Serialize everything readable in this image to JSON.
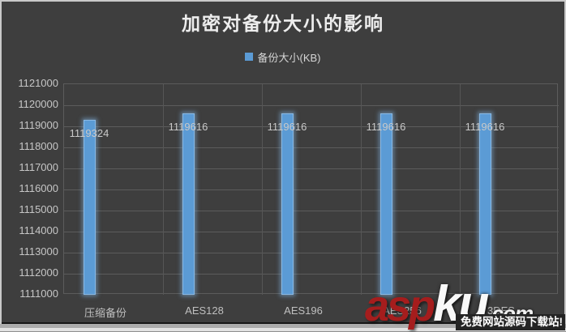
{
  "chart_data": {
    "type": "bar",
    "title": "加密对备份大小的影响",
    "legend": {
      "label": "备份大小(KB)",
      "position": "top"
    },
    "categories": [
      "压缩备份",
      "AES128",
      "AES196",
      "AES256",
      "3DES"
    ],
    "series": [
      {
        "name": "备份大小(KB)",
        "values": [
          1119324,
          1119616,
          1119616,
          1119616,
          1119616
        ]
      }
    ],
    "data_labels": [
      "1119324",
      "1119616",
      "1119616",
      "1119616",
      "1119616"
    ],
    "xlabel": "",
    "ylabel": "",
    "ylim": [
      1111000,
      1121000
    ],
    "ytick_step": 1000,
    "grid": "horizontal and vertical major gridlines",
    "colors": {
      "bar": "#5B9BD5",
      "bar_glow": "#9CC3E8",
      "background": "#3E3E3E",
      "gridline": "#5C5C5C",
      "axis_text": "#C6C6C6",
      "title_text": "#EDEDED"
    }
  },
  "watermark": {
    "brand_red": "asp",
    "brand_white": "ku",
    "brand_suffix": ".com",
    "tagline": "免费网站源码下载站!",
    "red_color": "#A51D1D"
  }
}
